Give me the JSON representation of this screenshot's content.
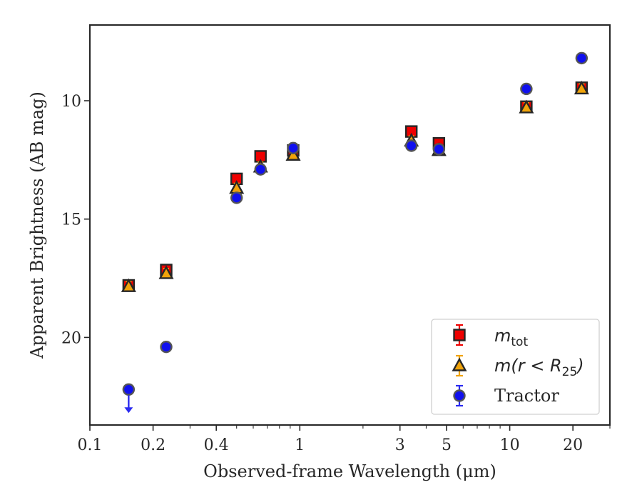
{
  "chart_data": {
    "type": "scatter",
    "title": "",
    "xlabel": "Observed-frame Wavelength (μm)",
    "ylabel": "Apparent Brightness (AB mag)",
    "xscale": "log",
    "xlim": [
      0.1,
      30
    ],
    "ylim": [
      23.7,
      6.8
    ],
    "y_inverted": true,
    "grid": false,
    "legend_position": "bottom-right",
    "x_ticks": [
      {
        "value": 0.1,
        "label": "0.1"
      },
      {
        "value": 0.2,
        "label": "0.2"
      },
      {
        "value": 0.4,
        "label": "0.4"
      },
      {
        "value": 1,
        "label": "1"
      },
      {
        "value": 3,
        "label": "3"
      },
      {
        "value": 5,
        "label": "5"
      },
      {
        "value": 10,
        "label": "10"
      },
      {
        "value": 20,
        "label": "20"
      }
    ],
    "y_ticks": [
      {
        "value": 10,
        "label": "10"
      },
      {
        "value": 15,
        "label": "15"
      },
      {
        "value": 20,
        "label": "20"
      }
    ],
    "series": [
      {
        "name_main": "m",
        "name_sub": "tot",
        "marker": "square",
        "color": "#ee0000",
        "edge": "#262626",
        "error_color": "#ee0000",
        "x": [
          0.153,
          0.231,
          0.5,
          0.65,
          0.93,
          3.4,
          4.6,
          12.0,
          22.0
        ],
        "y": [
          17.8,
          17.15,
          13.3,
          12.35,
          12.1,
          11.3,
          11.8,
          10.25,
          9.45
        ]
      },
      {
        "name_main": "m(r < R",
        "name_sub": "25",
        "name_tail": ")",
        "marker": "triangle",
        "color": "#f0a30a",
        "edge": "#262626",
        "error_color": "#f0a30a",
        "x": [
          0.153,
          0.231,
          0.5,
          0.65,
          0.93,
          3.4,
          4.6,
          12.0,
          22.0
        ],
        "y": [
          17.85,
          17.3,
          13.7,
          12.8,
          12.3,
          11.7,
          12.1,
          10.3,
          9.5
        ]
      },
      {
        "name": "Tractor",
        "marker": "circle",
        "color": "#1010ee",
        "edge": "#555555",
        "error_color": "#2a2af0",
        "x": [
          0.153,
          0.231,
          0.5,
          0.65,
          0.93,
          3.4,
          4.6,
          12.0,
          22.0
        ],
        "y": [
          22.2,
          20.4,
          14.1,
          12.9,
          12.0,
          11.9,
          12.05,
          9.5,
          8.2
        ],
        "upper_limit": [
          true,
          false,
          false,
          false,
          false,
          false,
          false,
          false,
          false
        ]
      }
    ]
  }
}
